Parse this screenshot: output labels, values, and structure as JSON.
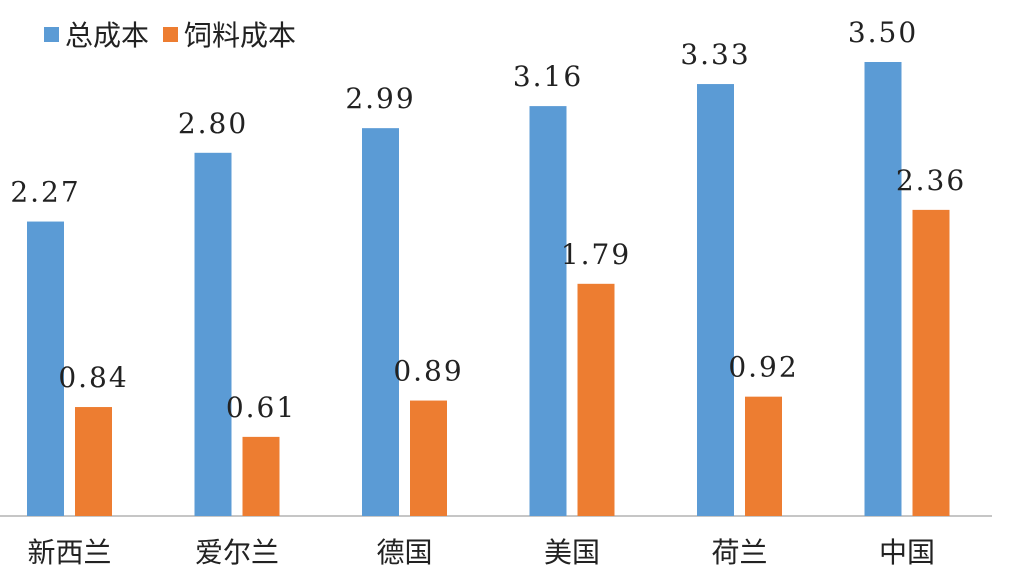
{
  "chart_data": {
    "type": "bar",
    "categories": [
      "新西兰",
      "爱尔兰",
      "德国",
      "美国",
      "荷兰",
      "中国"
    ],
    "series": [
      {
        "name": "总成本",
        "values": [
          2.27,
          2.8,
          2.99,
          3.16,
          3.33,
          3.5
        ],
        "labels": [
          "2.27",
          "2.80",
          "2.99",
          "3.16",
          "3.33",
          "3.50"
        ],
        "color": "#5b9bd5"
      },
      {
        "name": "饲料成本",
        "values": [
          0.84,
          0.61,
          0.89,
          1.79,
          0.92,
          2.36
        ],
        "labels": [
          "0.84",
          "0.61",
          "0.89",
          "1.79",
          "0.92",
          "2.36"
        ],
        "color": "#ed7d31"
      }
    ],
    "ylim": [
      0,
      3.5
    ],
    "grid": false,
    "legend_position": "top-left",
    "title": "",
    "xlabel": "",
    "ylabel": ""
  }
}
